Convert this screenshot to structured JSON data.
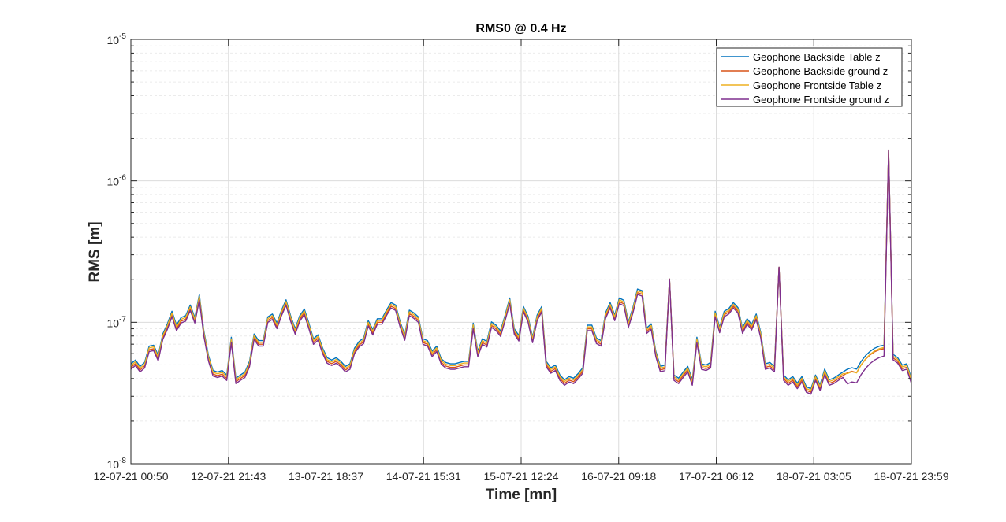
{
  "chart_data": {
    "type": "line",
    "title": "RMS0 @ 0.4 Hz",
    "xlabel": "Time [mn]",
    "ylabel": "RMS [m]",
    "y_scale": "log",
    "ylim": [
      1e-08,
      1e-05
    ],
    "y_ticks": [
      {
        "value": 1e-08,
        "base": "10",
        "exp": "-8"
      },
      {
        "value": 1e-07,
        "base": "10",
        "exp": "-7"
      },
      {
        "value": 1e-06,
        "base": "10",
        "exp": "-6"
      },
      {
        "value": 1e-05,
        "base": "10",
        "exp": "-5"
      }
    ],
    "x_tick_labels": [
      "12-07-21 00:50",
      "12-07-21 21:43",
      "13-07-21 18:37",
      "14-07-21 15:31",
      "15-07-21 12:24",
      "16-07-21 09:18",
      "17-07-21 06:12",
      "18-07-21 03:05",
      "18-07-21 23:59"
    ],
    "grid": true,
    "legend_position": "top-right",
    "series": [
      {
        "name": "Geophone Backside Table z",
        "color": "#0072BD",
        "offset": 1.06,
        "lift": [
          0,
          0,
          0
        ]
      },
      {
        "name": "Geophone Backside ground z",
        "color": "#D95319",
        "offset": 1.0,
        "lift": [
          0,
          0,
          0
        ]
      },
      {
        "name": "Geophone Frontside Table z",
        "color": "#EDB120",
        "offset": 1.03,
        "lift": [
          0.96,
          1.02,
          1.0
        ]
      },
      {
        "name": "Geophone Frontside ground z",
        "color": "#7E2F8E",
        "offset": 0.97,
        "lift": [
          0.86,
          0.9,
          0.93
        ]
      }
    ],
    "base_values": [
      4.8e-08,
      5.1e-08,
      4.6e-08,
      4.9e-08,
      6.4e-08,
      6.5e-08,
      5.5e-08,
      7.8e-08,
      9.2e-08,
      1.13e-07,
      9e-08,
      1.02e-07,
      1.05e-07,
      1.25e-07,
      1.02e-07,
      1.48e-07,
      8.2e-08,
      5.5e-08,
      4.3e-08,
      4.2e-08,
      4.3e-08,
      4e-08,
      7.4e-08,
      3.8e-08,
      4e-08,
      4.2e-08,
      5e-08,
      7.8e-08,
      7e-08,
      7e-08,
      1.03e-07,
      1.08e-07,
      9.3e-08,
      1.15e-07,
      1.36e-07,
      1.05e-07,
      8.5e-08,
      1.05e-07,
      1.17e-07,
      9.3e-08,
      7.2e-08,
      7.7e-08,
      6.2e-08,
      5.3e-08,
      5.1e-08,
      5.3e-08,
      5e-08,
      4.6e-08,
      4.8e-08,
      6.2e-08,
      6.9e-08,
      7.3e-08,
      9.7e-08,
      8.4e-08,
      1e-07,
      1e-07,
      1.15e-07,
      1.3e-07,
      1.25e-07,
      9.5e-08,
      7.7e-08,
      1.15e-07,
      1.1e-07,
      1.03e-07,
      7.2e-08,
      7e-08,
      5.9e-08,
      6.4e-08,
      5.2e-08,
      4.9e-08,
      4.8e-08,
      4.8e-08,
      4.9e-08,
      5e-08,
      5e-08,
      9.3e-08,
      5.9e-08,
      7.2e-08,
      6.9e-08,
      9.5e-08,
      9e-08,
      8.2e-08,
      1.06e-07,
      1.4e-07,
      8.5e-08,
      7.6e-08,
      1.22e-07,
      1.04e-07,
      7.4e-08,
      1.06e-07,
      1.22e-07,
      5e-08,
      4.5e-08,
      4.7e-08,
      4e-08,
      3.7e-08,
      3.9e-08,
      3.8e-08,
      4.1e-08,
      4.5e-08,
      9e-08,
      9e-08,
      7.3e-08,
      7e-08,
      1.1e-07,
      1.3e-07,
      1.06e-07,
      1.4e-07,
      1.35e-07,
      9.5e-08,
      1.2e-07,
      1.62e-07,
      1.58e-07,
      8.6e-08,
      9.2e-08,
      5.9e-08,
      4.6e-08,
      4.7e-08,
      2.02e-07,
      4e-08,
      3.8e-08,
      4.2e-08,
      4.6e-08,
      3.7e-08,
      7.4e-08,
      4.8e-08,
      4.7e-08,
      4.9e-08,
      1.13e-07,
      8.7e-08,
      1.13e-07,
      1.18e-07,
      1.3e-07,
      1.2e-07,
      8.6e-08,
      1e-07,
      9.1e-08,
      1.08e-07,
      8e-08,
      4.8e-08,
      4.9e-08,
      4.6e-08,
      2.45e-07,
      4e-08,
      3.7e-08,
      3.9e-08,
      3.5e-08,
      3.9e-08,
      3.3e-08,
      3.2e-08,
      4e-08,
      3.4e-08,
      4.4e-08,
      3.7e-08,
      3.8e-08,
      4e-08,
      4.2e-08,
      4.4e-08,
      4.5e-08,
      4.4e-08,
      5e-08,
      5.5e-08,
      5.9e-08,
      6.2e-08,
      6.4e-08,
      6.5e-08,
      1.65e-06,
      5.6e-08,
      5.3e-08,
      4.7e-08,
      4.8e-08,
      3.8e-08
    ]
  }
}
